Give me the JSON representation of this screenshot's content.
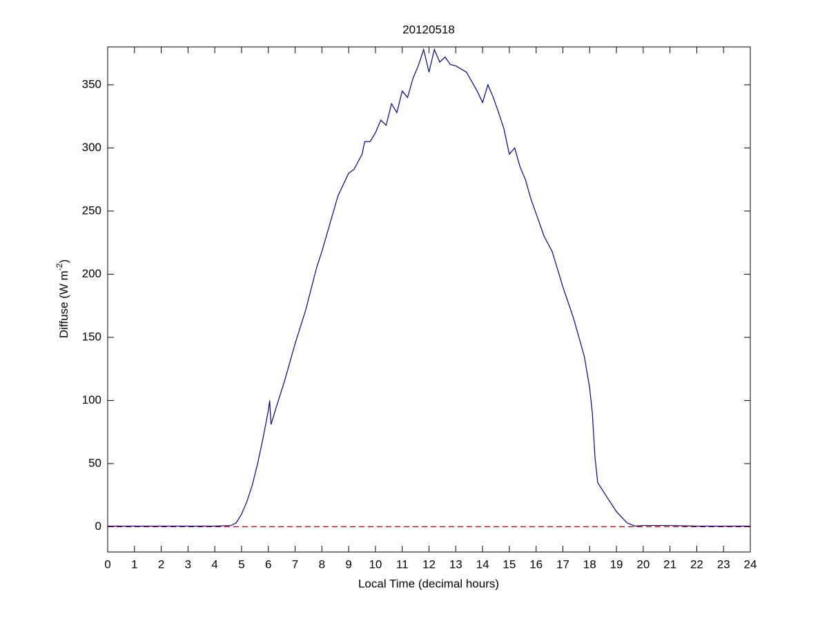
{
  "chart_data": {
    "type": "line",
    "title": "20120518",
    "xlabel": "Local Time (decimal hours)",
    "ylabel": [
      "Diffuse (W m",
      "-2",
      ")"
    ],
    "x": [
      0,
      1,
      2,
      3,
      4,
      4.6,
      4.8,
      5.0,
      5.2,
      5.4,
      5.6,
      5.8,
      6.0,
      6.05,
      6.1,
      6.3,
      6.6,
      7.0,
      7.4,
      7.8,
      8.0,
      8.3,
      8.6,
      9.0,
      9.2,
      9.5,
      9.6,
      9.8,
      10.0,
      10.2,
      10.4,
      10.6,
      10.8,
      11.0,
      11.2,
      11.4,
      11.6,
      11.8,
      12.0,
      12.2,
      12.4,
      12.6,
      12.8,
      13.0,
      13.4,
      13.8,
      14.0,
      14.2,
      14.4,
      14.6,
      14.8,
      15.0,
      15.2,
      15.4,
      15.6,
      15.8,
      16.0,
      16.3,
      16.6,
      17.0,
      17.4,
      17.8,
      18.0,
      18.1,
      18.2,
      18.3,
      18.6,
      19.0,
      19.4,
      19.7,
      20.0,
      21,
      22,
      23,
      24
    ],
    "series": [
      {
        "name": "Diffuse",
        "color": "#00008b",
        "values": [
          0.5,
          0.5,
          0.5,
          0.5,
          0.5,
          1,
          3,
          10,
          20,
          33,
          50,
          70,
          92,
          100,
          81,
          95,
          115,
          145,
          172,
          205,
          218,
          240,
          262,
          280,
          283,
          295,
          305,
          305,
          312,
          322,
          318,
          335,
          328,
          345,
          340,
          355,
          365,
          378,
          360,
          378,
          368,
          372,
          366,
          365,
          360,
          345,
          336,
          350,
          340,
          328,
          315,
          295,
          300,
          285,
          275,
          260,
          248,
          230,
          218,
          190,
          165,
          135,
          110,
          90,
          55,
          35,
          25,
          12,
          3,
          0.5,
          1,
          1,
          0.5,
          0.5,
          0.5
        ]
      }
    ],
    "reference_line": {
      "value": 0,
      "color": "#cc0000",
      "style": "dashed"
    },
    "xlim": [
      0,
      24
    ],
    "xticks": [
      0,
      1,
      2,
      3,
      4,
      5,
      6,
      7,
      8,
      9,
      10,
      11,
      12,
      13,
      14,
      15,
      16,
      17,
      18,
      19,
      20,
      21,
      22,
      23,
      24
    ],
    "ylim": [
      -20,
      380
    ],
    "yticks": [
      0,
      50,
      100,
      150,
      200,
      250,
      300,
      350
    ],
    "grid": false
  }
}
